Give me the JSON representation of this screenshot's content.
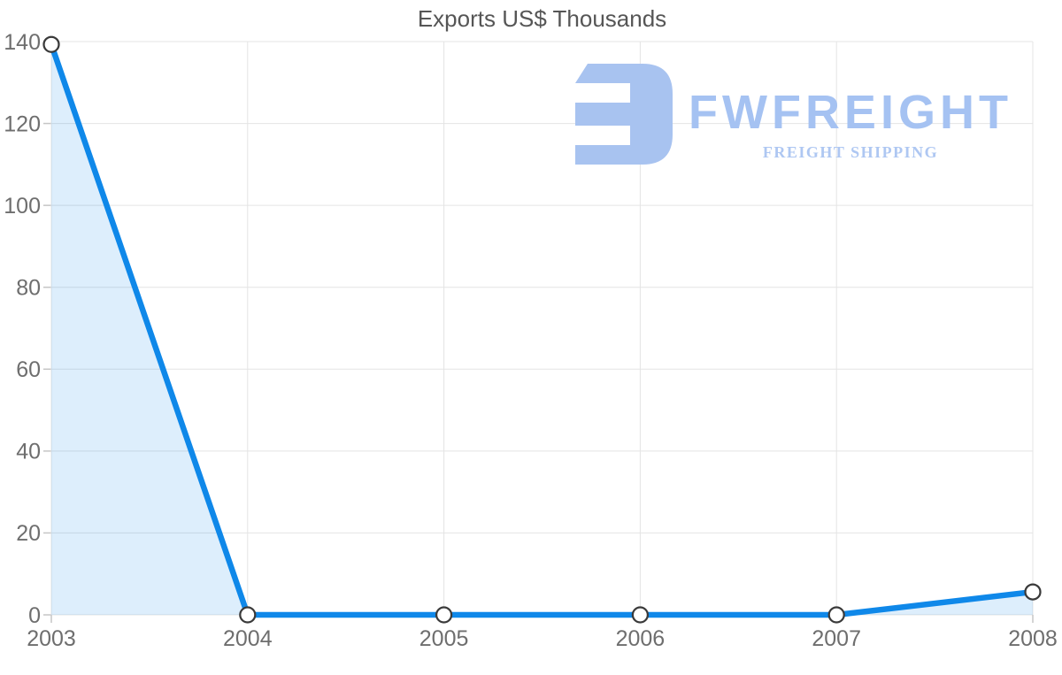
{
  "chart_data": {
    "type": "area",
    "title": "Exports US$ Thousands",
    "categories": [
      "2003",
      "2004",
      "2005",
      "2006",
      "2007",
      "2008"
    ],
    "values": [
      139.3,
      0,
      0,
      0,
      0,
      5.6
    ],
    "series_name": "Exports",
    "xlabel": "",
    "ylabel": "",
    "ylim": [
      0,
      140
    ],
    "ytick_step": 20,
    "yticks": [
      0,
      20,
      40,
      60,
      80,
      100,
      120,
      140
    ],
    "grid": true,
    "legend": "none",
    "styles": {
      "line_color": "#0f88e9",
      "line_width": 6.5,
      "area_fill_opacity": 0.14,
      "marker_fill": "#ffffff",
      "marker_stroke": "#3a3a3a",
      "grid_color": "#e4e4e4",
      "tick_color": "#c6c6c6",
      "axis_label_color": "#6e6e6e",
      "title_color": "#565656"
    }
  },
  "watermark": {
    "brand": "FWFREIGHT",
    "tagline": "FREIGHT SHIPPING",
    "brand_color": "#a5c2f2",
    "tagline_color": "#aec7f2",
    "icon_color": "#a8c3f0"
  }
}
